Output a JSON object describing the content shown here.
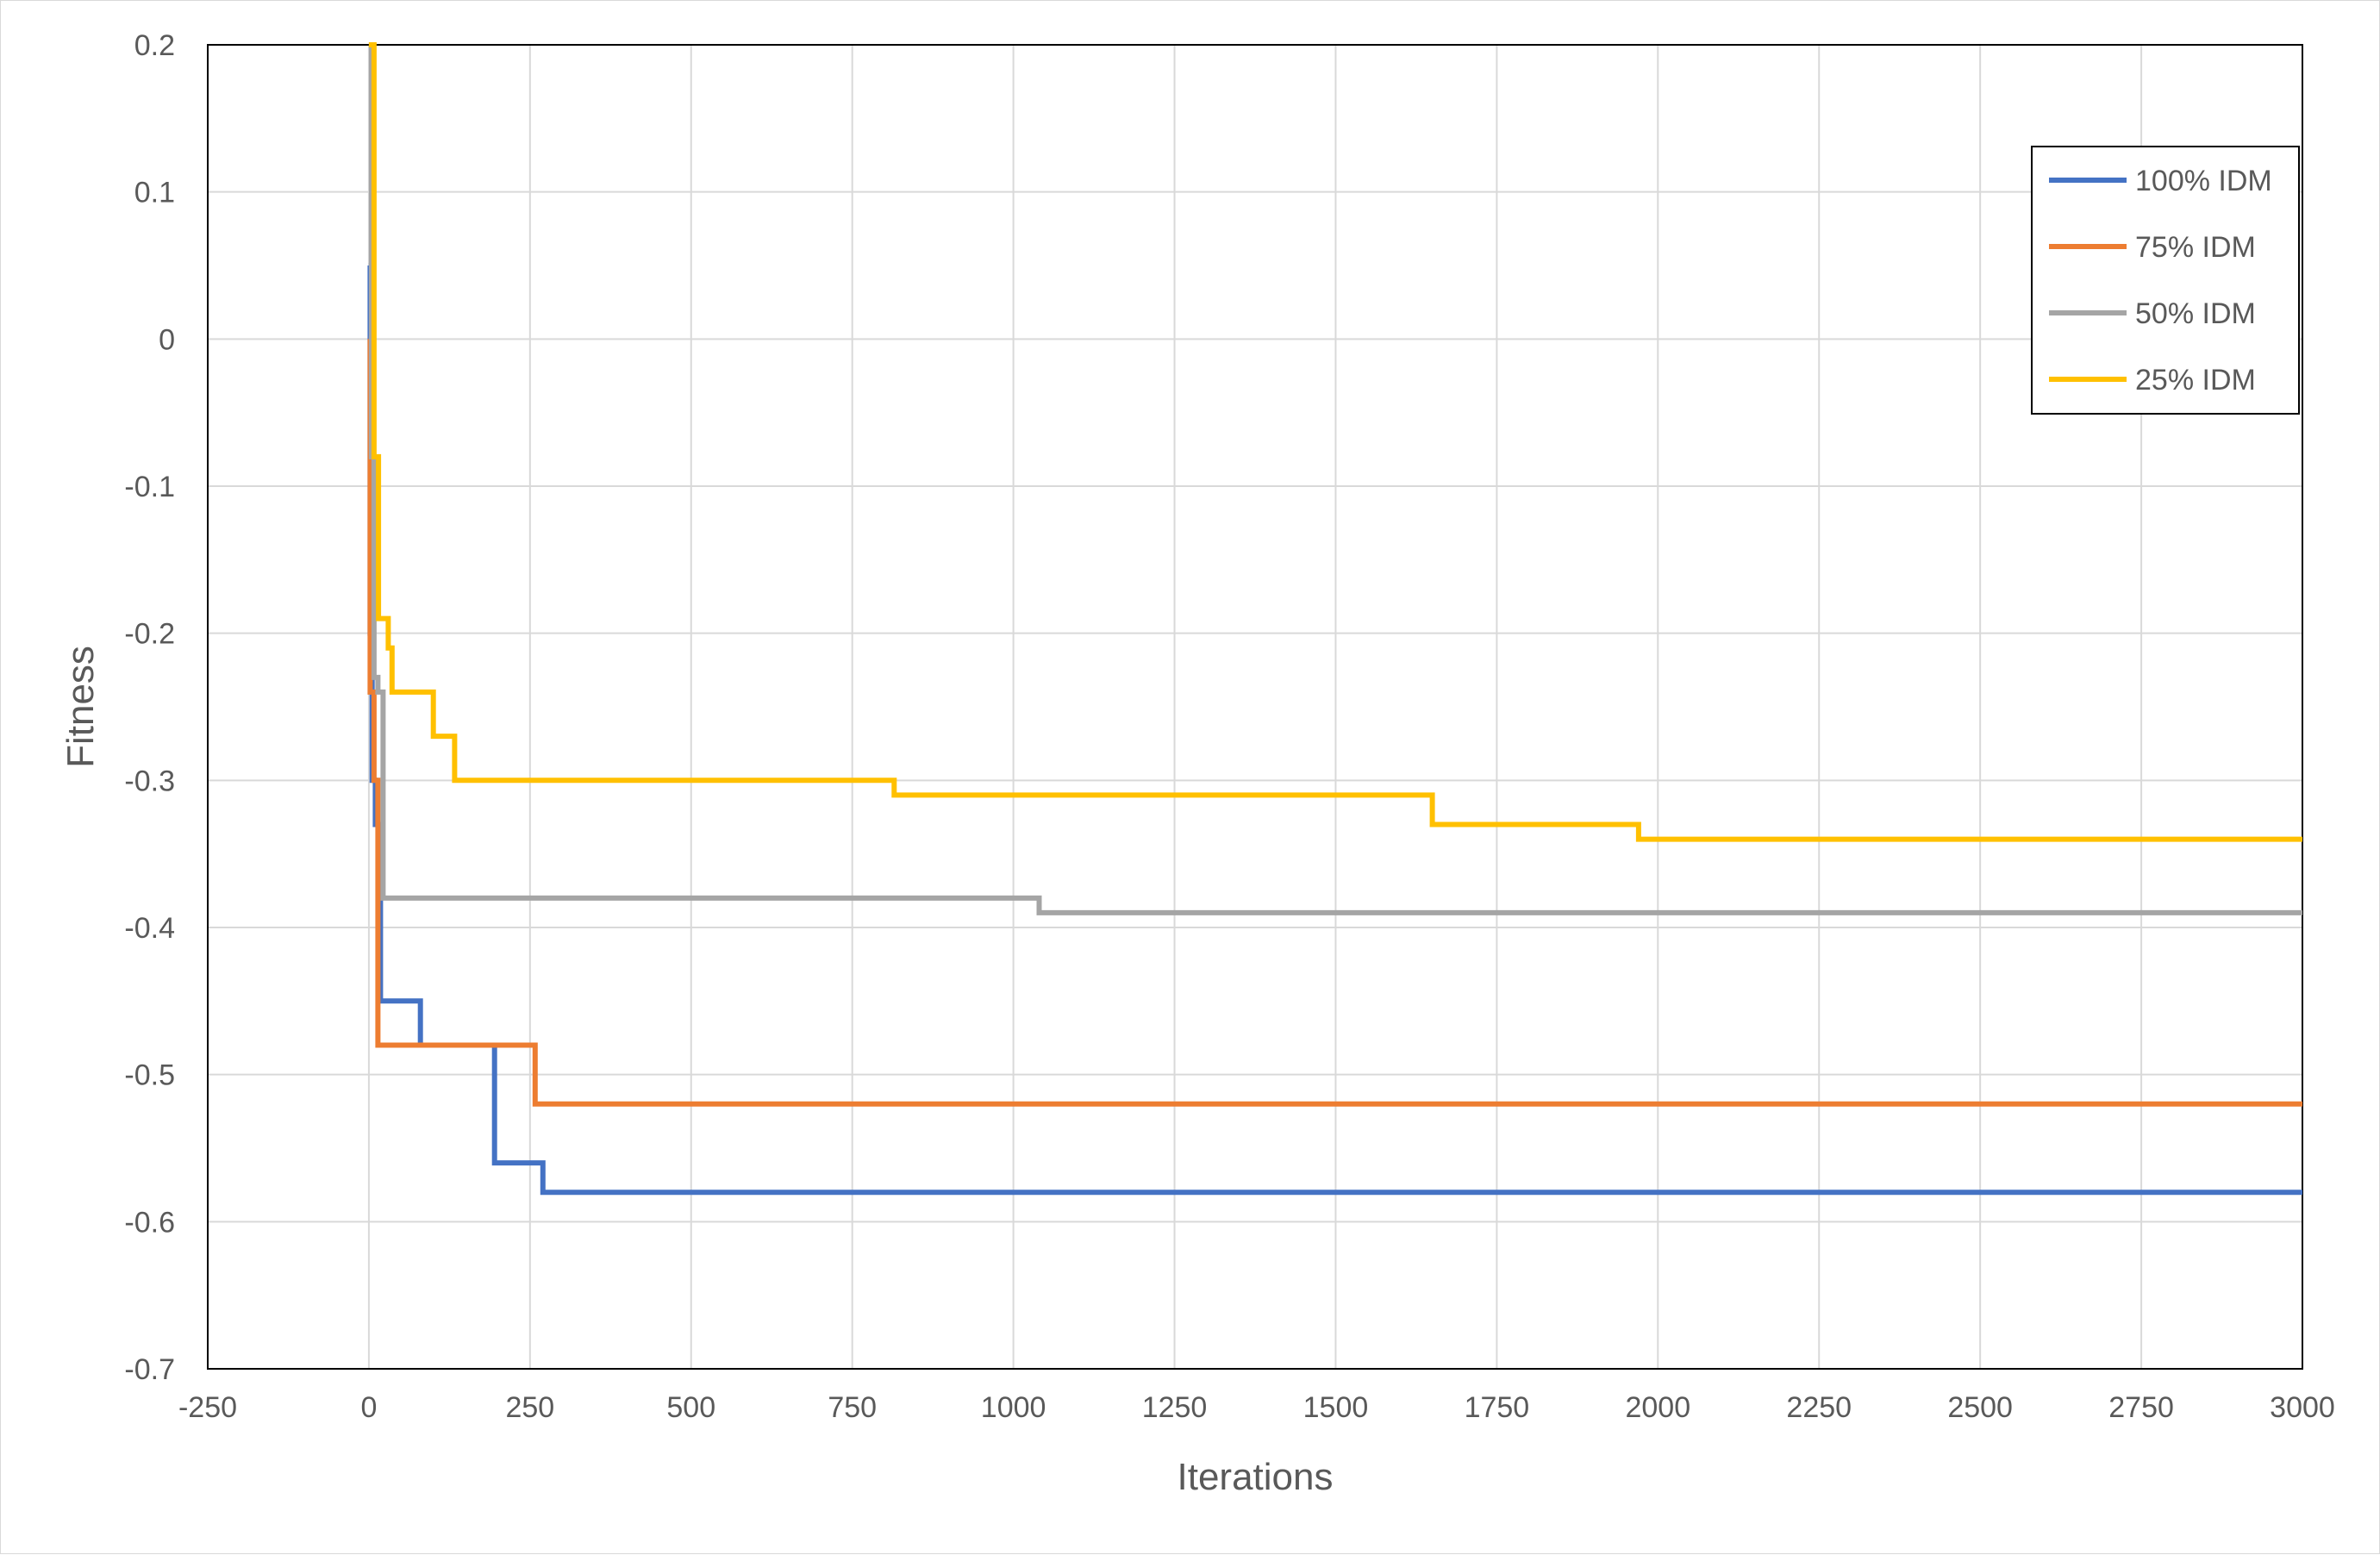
{
  "chart_data": {
    "type": "line",
    "title": "",
    "xlabel": "Iterations",
    "ylabel": "Fitness",
    "xlim": [
      -250,
      3000
    ],
    "ylim": [
      -0.7,
      0.2
    ],
    "xticks": [
      -250,
      0,
      250,
      500,
      750,
      1000,
      1250,
      1500,
      1750,
      2000,
      2250,
      2500,
      2750,
      3000
    ],
    "yticks": [
      0.2,
      0.1,
      0,
      -0.1,
      -0.2,
      -0.3,
      -0.4,
      -0.5,
      -0.6,
      -0.7
    ],
    "grid": true,
    "legend_position": "top-right",
    "series": [
      {
        "name": "100% IDM",
        "color": "#4472C4",
        "x": [
          0,
          2,
          2,
          5,
          5,
          10,
          10,
          18,
          18,
          80,
          80,
          195,
          195,
          270,
          270,
          3000
        ],
        "y": [
          0.05,
          0.05,
          -0.2,
          -0.2,
          -0.3,
          -0.3,
          -0.33,
          -0.33,
          -0.45,
          -0.45,
          -0.48,
          -0.48,
          -0.56,
          -0.56,
          -0.58,
          -0.58
        ]
      },
      {
        "name": "75% IDM",
        "color": "#ED7D31",
        "x": [
          0,
          2,
          2,
          8,
          8,
          14,
          14,
          258,
          258,
          3000
        ],
        "y": [
          0.0,
          0.0,
          -0.24,
          -0.24,
          -0.3,
          -0.3,
          -0.48,
          -0.48,
          -0.52,
          -0.52
        ]
      },
      {
        "name": "50% IDM",
        "color": "#A5A5A5",
        "x": [
          0,
          4,
          4,
          8,
          8,
          14,
          14,
          22,
          22,
          1040,
          1040,
          3000
        ],
        "y": [
          0.2,
          0.2,
          -0.08,
          -0.08,
          -0.23,
          -0.23,
          -0.24,
          -0.24,
          -0.38,
          -0.38,
          -0.39,
          -0.39
        ]
      },
      {
        "name": "25% IDM",
        "color": "#FFC000",
        "x": [
          0,
          8,
          8,
          15,
          15,
          30,
          30,
          36,
          36,
          100,
          100,
          133,
          133,
          815,
          815,
          1650,
          1650,
          1970,
          1970,
          3000
        ],
        "y": [
          0.2,
          0.2,
          -0.08,
          -0.08,
          -0.19,
          -0.19,
          -0.21,
          -0.21,
          -0.24,
          -0.24,
          -0.27,
          -0.27,
          -0.3,
          -0.3,
          -0.31,
          -0.31,
          -0.33,
          -0.33,
          -0.34,
          -0.34
        ]
      }
    ]
  }
}
